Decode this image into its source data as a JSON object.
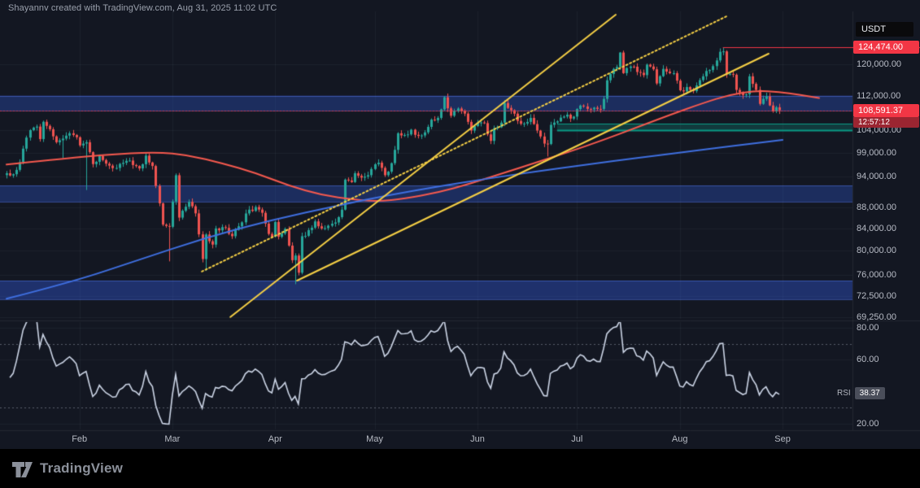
{
  "page": {
    "bg": "#131722",
    "bottom_bar_bg": "#000000",
    "axis_text_color": "#b8bcc6"
  },
  "attribution": {
    "text": "Shayannv created with TradingView.com, Aug 31, 2025 11:02 UTC"
  },
  "symbol_badge": {
    "label": "USDT"
  },
  "watermark": {
    "brand": "TradingView"
  },
  "price_axis": {
    "ticks": [
      {
        "label": "120,000.00",
        "price": 120000
      },
      {
        "label": "112,000.00",
        "price": 112000
      },
      {
        "label": "104,000.00",
        "price": 104000
      },
      {
        "label": "99,000.00",
        "price": 99000
      },
      {
        "label": "94,000.00",
        "price": 94000
      },
      {
        "label": "88,000.00",
        "price": 88000
      },
      {
        "label": "84,000.00",
        "price": 84000
      },
      {
        "label": "80,000.00",
        "price": 80000
      },
      {
        "label": "76,000.00",
        "price": 76000
      },
      {
        "label": "72,500.00",
        "price": 72500
      },
      {
        "label": "69,250.00",
        "price": 69250
      }
    ],
    "high_badge": {
      "label": "124,474.00",
      "price": 124474,
      "bg": "#f23645",
      "fg": "#ffffff"
    },
    "last_badge": {
      "label": "108,591.37",
      "price": 108591.37,
      "bg": "#f23645",
      "fg": "#ffffff",
      "countdown": "12:57:12",
      "countdown_bg": "#9b2531"
    }
  },
  "rsi_axis": {
    "ticks": [
      {
        "label": "80.00",
        "value": 80
      },
      {
        "label": "60.00",
        "value": 60
      },
      {
        "label": "20.00",
        "value": 20
      }
    ],
    "badge": {
      "prefix": "RSI",
      "label": "38.37",
      "value": 38.37,
      "bg": "#4a4e5a",
      "fg": "#ffffff"
    }
  },
  "time_axis": {
    "labels": [
      {
        "label": "Feb",
        "day": 22
      },
      {
        "label": "Mar",
        "day": 50
      },
      {
        "label": "Apr",
        "day": 81
      },
      {
        "label": "May",
        "day": 111
      },
      {
        "label": "Jun",
        "day": 142
      },
      {
        "label": "Jul",
        "day": 172
      },
      {
        "label": "Aug",
        "day": 203
      },
      {
        "label": "Sep",
        "day": 234
      }
    ]
  },
  "chart_data": {
    "type": "candlestick",
    "quote_currency": "USDT",
    "last_price": 108591.37,
    "all_time_high": 124474,
    "time_span_days": 234,
    "months": [
      "Feb",
      "Mar",
      "Apr",
      "May",
      "Jun",
      "Jul",
      "Aug",
      "Sep"
    ],
    "y_ticks": [
      120000,
      112000,
      104000,
      99000,
      94000,
      88000,
      84000,
      80000,
      76000,
      72500,
      69250
    ],
    "visible_price_range": [
      69075,
      133170
    ],
    "visible_rsi_range": [
      16.5,
      84.5
    ],
    "up_color": "#26a69a",
    "down_color": "#ef5350",
    "candle_anchors": [
      [
        0,
        94700
      ],
      [
        2,
        94500
      ],
      [
        4,
        97000
      ],
      [
        5,
        99900
      ],
      [
        7,
        104000
      ],
      [
        9,
        104800
      ],
      [
        10,
        102000
      ],
      [
        11,
        105900
      ],
      [
        13,
        104200
      ],
      [
        15,
        101300
      ],
      [
        17,
        102100
      ],
      [
        19,
        103300
      ],
      [
        21,
        102400
      ],
      [
        22,
        100600
      ],
      [
        24,
        101300
      ],
      [
        26,
        96600
      ],
      [
        28,
        98300
      ],
      [
        30,
        96700
      ],
      [
        33,
        95800
      ],
      [
        36,
        97300
      ],
      [
        38,
        96400
      ],
      [
        40,
        95700
      ],
      [
        42,
        98400
      ],
      [
        44,
        96200
      ],
      [
        46,
        88700
      ],
      [
        47,
        84700
      ],
      [
        49,
        84300
      ],
      [
        51,
        94300
      ],
      [
        52,
        86000
      ],
      [
        53,
        87300
      ],
      [
        55,
        89000
      ],
      [
        57,
        86800
      ],
      [
        59,
        78600
      ],
      [
        60,
        82900
      ],
      [
        62,
        81100
      ],
      [
        63,
        84000
      ],
      [
        66,
        84100
      ],
      [
        68,
        82600
      ],
      [
        70,
        84400
      ],
      [
        73,
        87500
      ],
      [
        75,
        88000
      ],
      [
        77,
        86900
      ],
      [
        79,
        83000
      ],
      [
        80,
        82500
      ],
      [
        81,
        85200
      ],
      [
        82,
        82500
      ],
      [
        84,
        83900
      ],
      [
        86,
        78400
      ],
      [
        87,
        79200
      ],
      [
        88,
        76300
      ],
      [
        89,
        82600
      ],
      [
        91,
        83700
      ],
      [
        93,
        85300
      ],
      [
        95,
        84000
      ],
      [
        97,
        84500
      ],
      [
        99,
        85100
      ],
      [
        101,
        87500
      ],
      [
        102,
        93400
      ],
      [
        104,
        92900
      ],
      [
        105,
        94700
      ],
      [
        107,
        93800
      ],
      [
        109,
        94300
      ],
      [
        112,
        96900
      ],
      [
        114,
        94300
      ],
      [
        116,
        96800
      ],
      [
        118,
        103300
      ],
      [
        120,
        102900
      ],
      [
        122,
        104100
      ],
      [
        124,
        102700
      ],
      [
        126,
        103500
      ],
      [
        128,
        106400
      ],
      [
        130,
        106800
      ],
      [
        132,
        111700
      ],
      [
        134,
        107300
      ],
      [
        136,
        109000
      ],
      [
        138,
        107800
      ],
      [
        140,
        103900
      ],
      [
        142,
        105700
      ],
      [
        144,
        105600
      ],
      [
        146,
        101600
      ],
      [
        147,
        104400
      ],
      [
        149,
        105700
      ],
      [
        150,
        110300
      ],
      [
        152,
        108600
      ],
      [
        154,
        106100
      ],
      [
        156,
        105500
      ],
      [
        158,
        106800
      ],
      [
        160,
        103900
      ],
      [
        162,
        101000
      ],
      [
        163,
        100900
      ],
      [
        164,
        105200
      ],
      [
        166,
        106000
      ],
      [
        168,
        107100
      ],
      [
        171,
        107100
      ],
      [
        173,
        109700
      ],
      [
        175,
        108900
      ],
      [
        177,
        109200
      ],
      [
        179,
        108900
      ],
      [
        180,
        111300
      ],
      [
        181,
        115900
      ],
      [
        182,
        117500
      ],
      [
        184,
        119300
      ],
      [
        185,
        123100
      ],
      [
        186,
        117700
      ],
      [
        188,
        119400
      ],
      [
        190,
        118000
      ],
      [
        192,
        117200
      ],
      [
        193,
        119900
      ],
      [
        195,
        118700
      ],
      [
        196,
        115100
      ],
      [
        198,
        118800
      ],
      [
        199,
        118100
      ],
      [
        201,
        117700
      ],
      [
        202,
        115800
      ],
      [
        203,
        113400
      ],
      [
        205,
        114200
      ],
      [
        207,
        113200
      ],
      [
        208,
        114600
      ],
      [
        210,
        116900
      ],
      [
        212,
        118500
      ],
      [
        214,
        121000
      ],
      [
        215,
        123300
      ],
      [
        216,
        123400
      ],
      [
        217,
        117400
      ],
      [
        219,
        117300
      ],
      [
        220,
        113500
      ],
      [
        221,
        112900
      ],
      [
        223,
        112400
      ],
      [
        224,
        116900
      ],
      [
        225,
        115000
      ],
      [
        226,
        113500
      ],
      [
        227,
        110100
      ],
      [
        228,
        111300
      ],
      [
        229,
        111900
      ],
      [
        231,
        108400
      ],
      [
        232,
        109300
      ],
      [
        233,
        108591.37
      ]
    ],
    "wick_overrides": [
      [
        17,
        "low",
        97900
      ],
      [
        24,
        "low",
        91300
      ],
      [
        49,
        "low",
        78200
      ],
      [
        60,
        "low",
        76600
      ],
      [
        87,
        "low",
        74420
      ],
      [
        132,
        "high",
        111980
      ],
      [
        163,
        "low",
        98200
      ],
      [
        185,
        "high",
        123218
      ],
      [
        216,
        "high",
        124474
      ]
    ],
    "moving_averages": [
      {
        "name": "ma-fast-red",
        "color": "#f5594e",
        "width": 2,
        "points": [
          [
            0,
            96500
          ],
          [
            15,
            97600
          ],
          [
            30,
            98600
          ],
          [
            45,
            99200
          ],
          [
            55,
            98500
          ],
          [
            65,
            96800
          ],
          [
            75,
            94800
          ],
          [
            85,
            92200
          ],
          [
            95,
            90300
          ],
          [
            105,
            89400
          ],
          [
            112,
            89100
          ],
          [
            120,
            89600
          ],
          [
            130,
            90800
          ],
          [
            140,
            92600
          ],
          [
            150,
            94800
          ],
          [
            160,
            97000
          ],
          [
            170,
            99300
          ],
          [
            180,
            101800
          ],
          [
            190,
            104600
          ],
          [
            200,
            107500
          ],
          [
            210,
            110300
          ],
          [
            218,
            112300
          ],
          [
            226,
            113300
          ],
          [
            233,
            113000
          ],
          [
            239,
            112300
          ],
          [
            245,
            111500
          ]
        ]
      },
      {
        "name": "ma-slow-blue",
        "color": "#3f6fe0",
        "width": 2,
        "points": [
          [
            0,
            72100
          ],
          [
            20,
            74800
          ],
          [
            40,
            78500
          ],
          [
            60,
            82300
          ],
          [
            80,
            85600
          ],
          [
            100,
            88300
          ],
          [
            115,
            90300
          ],
          [
            130,
            92000
          ],
          [
            145,
            93600
          ],
          [
            160,
            95100
          ],
          [
            175,
            96500
          ],
          [
            190,
            97900
          ],
          [
            205,
            99200
          ],
          [
            220,
            100600
          ],
          [
            234,
            101800
          ]
        ]
      }
    ],
    "zones": [
      {
        "name": "resistance-zone-112k",
        "price_from": 108500,
        "price_to": 112100,
        "full_width": true,
        "fill": "rgba(50,90,220,0.33)",
        "edge": "rgba(90,130,255,0.45)",
        "bottom_line_width": 1
      },
      {
        "name": "support-zone-90k",
        "price_from": 89000,
        "price_to": 92200,
        "full_width": true,
        "fill": "rgba(50,90,220,0.33)",
        "edge": "rgba(90,130,255,0.45)",
        "bottom_line_width": 1
      },
      {
        "name": "support-zone-73k",
        "price_from": 72000,
        "price_to": 75000,
        "full_width": true,
        "fill": "rgba(50,90,220,0.40)",
        "edge": "rgba(90,130,255,0.45)",
        "bottom_line_width": 1
      },
      {
        "name": "demand-zone-104k",
        "price_from": 104000,
        "price_to": 105500,
        "day_from": 166,
        "fill": "rgba(16,150,132,0.28)",
        "edge": "#0a9a86",
        "bottom_line_width": 2
      }
    ],
    "horizontal_lines": [
      {
        "name": "ath-line",
        "price": 124474,
        "day_from": 216,
        "to_right_edge": true,
        "color": "#f23645",
        "width": 1,
        "dash": []
      },
      {
        "name": "last-price-line",
        "price": 108591.37,
        "full_width": true,
        "color": "#f23645",
        "width": 1,
        "dash": [
          2,
          2
        ],
        "opacity": 0.7
      }
    ],
    "trendlines": [
      {
        "name": "trendline-steep",
        "from": [
          67.5,
          69300
        ],
        "to": [
          183.7,
          133650
        ],
        "color": "#f5cf45",
        "width": 2,
        "dash": []
      },
      {
        "name": "trendline-dotted-upper",
        "from": [
          58.9,
          76500
        ],
        "to": [
          217.1,
          133170
        ],
        "color": "#f5cf45",
        "width": 2,
        "dash": [
          2,
          3
        ]
      },
      {
        "name": "trendline-lower",
        "from": [
          87.6,
          75000
        ],
        "to": [
          229.8,
          122790
        ],
        "color": "#f5cf45",
        "width": 2,
        "dash": []
      }
    ],
    "rsi": {
      "period": 14,
      "color": "#ccd5e6",
      "width": 1.6,
      "current": 38.37,
      "levels": [
        {
          "value": 70,
          "style": "dashed"
        },
        {
          "value": 30,
          "style": "dashed"
        }
      ]
    }
  }
}
